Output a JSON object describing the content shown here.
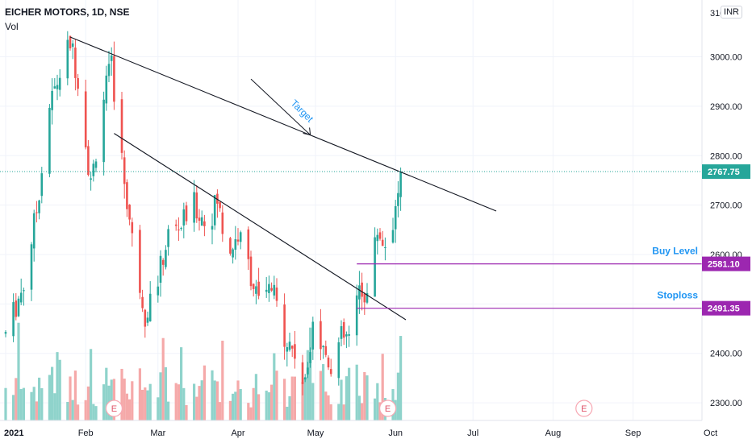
{
  "header": {
    "symbol": "EICHER MOTORS, 1D, NSE",
    "indicator": "Vol",
    "currency": "INR"
  },
  "chart_data": {
    "type": "candlestick",
    "ylim": [
      2235,
      3110
    ],
    "y_ticks": [
      2300,
      2400,
      2500,
      2600,
      2700,
      2800,
      2900,
      3000
    ],
    "y_tick_labels": [
      "2300.00",
      "2400.00",
      "2500.00",
      "2600.00",
      "2700.00",
      "2800.00",
      "2900.00",
      "3000.00"
    ],
    "x_ticks": [
      "2021",
      "Feb",
      "Mar",
      "Apr",
      "May",
      "Jun",
      "Jul",
      "Aug",
      "Sep",
      "Oct"
    ],
    "x_tick_dates": [
      "2021-01-01",
      "2021-02-01",
      "2021-03-01",
      "2021-04-01",
      "2021-05-01",
      "2021-06-01",
      "2021-07-01",
      "2021-08-01",
      "2021-09-01",
      "2021-10-01"
    ],
    "last_price": {
      "value": 2767.75,
      "label": "2767.75",
      "color": "#26a69a"
    },
    "levels": [
      {
        "name": "Buy Level",
        "value": 2581.1,
        "label": "2581.10",
        "from": "2021-05-17",
        "color": "#9c27b0"
      },
      {
        "name": "Stoploss",
        "value": 2491.35,
        "label": "2491.35",
        "from": "2021-05-17",
        "color": "#9c27b0"
      }
    ],
    "trendlines": [
      {
        "from": [
          "2021-01-26",
          3040
        ],
        "to": [
          "2021-07-10",
          2688
        ]
      },
      {
        "from": [
          "2021-02-12",
          2845
        ],
        "to": [
          "2021-06-05",
          2468
        ]
      }
    ],
    "annotation": {
      "text": "Target",
      "color": "#2196f3",
      "arrow_from": [
        "2021-04-06",
        2955
      ],
      "arrow_to": [
        "2021-04-29",
        2842
      ]
    },
    "earnings_markers": [
      {
        "label": "E",
        "date": "2021-02-12"
      },
      {
        "label": "E",
        "date": "2021-05-29"
      },
      {
        "label": "E",
        "date": "2021-08-13"
      }
    ],
    "ohlc_keypoints": [
      [
        "2021-01-01",
        2440
      ],
      [
        "2021-01-08",
        2540
      ],
      [
        "2021-01-13",
        2690
      ],
      [
        "2021-01-18",
        2900
      ],
      [
        "2021-01-26",
        3030
      ],
      [
        "2021-01-29",
        2960
      ],
      [
        "2021-02-03",
        2740
      ],
      [
        "2021-02-08",
        2920
      ],
      [
        "2021-02-11",
        2980
      ],
      [
        "2021-02-15",
        2790
      ],
      [
        "2021-02-19",
        2630
      ],
      [
        "2021-02-24",
        2480
      ],
      [
        "2021-03-01",
        2550
      ],
      [
        "2021-03-05",
        2640
      ],
      [
        "2021-03-10",
        2660
      ],
      [
        "2021-03-15",
        2700
      ],
      [
        "2021-03-20",
        2660
      ],
      [
        "2021-03-24",
        2710
      ],
      [
        "2021-03-28",
        2600
      ],
      [
        "2021-04-01",
        2640
      ],
      [
        "2021-04-05",
        2580
      ],
      [
        "2021-04-09",
        2500
      ],
      [
        "2021-04-14",
        2530
      ],
      [
        "2021-04-19",
        2440
      ],
      [
        "2021-04-23",
        2400
      ],
      [
        "2021-04-27",
        2330
      ],
      [
        "2021-04-30",
        2480
      ],
      [
        "2021-05-03",
        2420
      ],
      [
        "2021-05-07",
        2380
      ],
      [
        "2021-05-11",
        2430
      ],
      [
        "2021-05-15",
        2430
      ],
      [
        "2021-05-18",
        2530
      ],
      [
        "2021-05-21",
        2520
      ],
      [
        "2021-05-25",
        2650
      ],
      [
        "2021-05-28",
        2620
      ],
      [
        "2021-06-01",
        2690
      ],
      [
        "2021-06-03",
        2768
      ]
    ],
    "volume": {
      "series": "Vol",
      "up_color": "#8fd3cb",
      "down_color": "#f5a9a9"
    }
  }
}
